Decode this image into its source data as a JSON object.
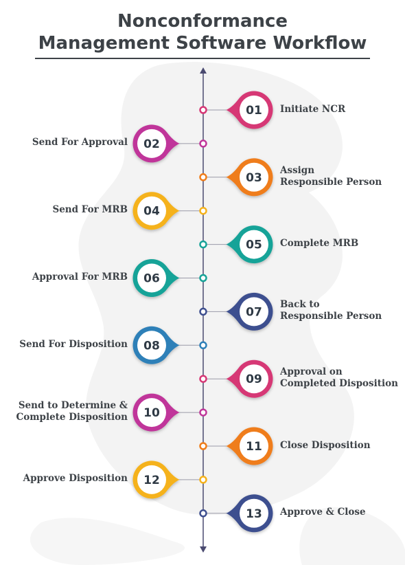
{
  "title": {
    "line1": "Nonconformance",
    "line2": "Management Software Workflow"
  },
  "colors": {
    "pink": "#d63775",
    "magenta": "#c0369a",
    "orange": "#ef7d1a",
    "yellow": "#f5b21b",
    "teal": "#17a398",
    "blue": "#2e80b8",
    "indigo": "#3e4f8f",
    "text": "#3d4247",
    "axis": "#4a4a70"
  },
  "steps": [
    {
      "number": "01",
      "side": "right",
      "lines": [
        "Initiate NCR"
      ],
      "color": "pink"
    },
    {
      "number": "02",
      "side": "left",
      "lines": [
        "Send For Approval"
      ],
      "color": "magenta"
    },
    {
      "number": "03",
      "side": "right",
      "lines": [
        "Assign",
        "Responsible Person"
      ],
      "color": "orange"
    },
    {
      "number": "04",
      "side": "left",
      "lines": [
        "Send For MRB"
      ],
      "color": "yellow"
    },
    {
      "number": "05",
      "side": "right",
      "lines": [
        "Complete MRB"
      ],
      "color": "teal"
    },
    {
      "number": "06",
      "side": "left",
      "lines": [
        "Approval For MRB"
      ],
      "color": "teal"
    },
    {
      "number": "07",
      "side": "right",
      "lines": [
        "Back to",
        "Responsible Person"
      ],
      "color": "indigo"
    },
    {
      "number": "08",
      "side": "left",
      "lines": [
        "Send For Disposition"
      ],
      "color": "blue"
    },
    {
      "number": "09",
      "side": "right",
      "lines": [
        "Approval on",
        "Completed Disposition"
      ],
      "color": "pink"
    },
    {
      "number": "10",
      "side": "left",
      "lines": [
        "Send to Determine &",
        "Complete Disposition"
      ],
      "color": "magenta"
    },
    {
      "number": "11",
      "side": "right",
      "lines": [
        "Close Disposition"
      ],
      "color": "orange"
    },
    {
      "number": "12",
      "side": "left",
      "lines": [
        "Approve Disposition"
      ],
      "color": "yellow"
    },
    {
      "number": "13",
      "side": "right",
      "lines": [
        "Approve & Close"
      ],
      "color": "indigo"
    }
  ]
}
